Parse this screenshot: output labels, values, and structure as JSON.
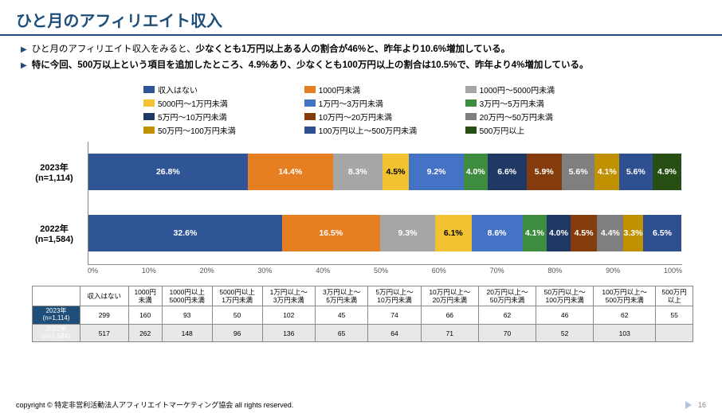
{
  "title": "ひと月のアフィリエイト収入",
  "bullets": [
    "ひと月のアフィリエイト収入をみると、<b>少なくとも1万円以上ある人の割合が46%と、昨年より10.6%増加している。</b>",
    "<b>特に今回、500万以上という項目を追加したところ、4.9%あり、少なくとも100万円以上の割合は10.5%で、昨年より4%増加している。</b>"
  ],
  "categories": [
    "収入はない",
    "1000円未満",
    "1000円〜5000円未満",
    "5000円〜1万円未満",
    "1万円〜3万円未満",
    "3万円〜5万円未満",
    "5万円〜10万円未満",
    "10万円〜20万円未満",
    "20万円〜50万円未満",
    "50万円〜100万円未満",
    "100万円以上〜500万円未満",
    "500万円以上"
  ],
  "colors": [
    "#2f5597",
    "#e67e22",
    "#a6a6a6",
    "#f1c232",
    "#4472c4",
    "#3d8c40",
    "#1f3864",
    "#843c0c",
    "#7f7f7f",
    "#bf9000",
    "#2e5090",
    "#274e13"
  ],
  "legend_text_color": "#333",
  "rows": [
    {
      "label": "2023年\n(n=1,114)",
      "values": [
        26.8,
        14.4,
        8.3,
        4.5,
        9.2,
        4.0,
        6.6,
        5.9,
        5.6,
        4.1,
        5.6,
        4.9
      ]
    },
    {
      "label": "2022年\n(n=1,584)",
      "values": [
        32.6,
        16.5,
        9.3,
        6.1,
        8.6,
        4.1,
        4.0,
        4.5,
        4.4,
        3.3,
        6.5,
        0
      ]
    }
  ],
  "show_labels_2023": [
    1,
    1,
    1,
    1,
    1,
    1,
    1,
    1,
    1,
    1,
    1,
    1
  ],
  "show_labels_2022": [
    1,
    1,
    1,
    1,
    1,
    1,
    1,
    1,
    1,
    1,
    1,
    0
  ],
  "black_text_idx": [
    3
  ],
  "xaxis": [
    "0%",
    "10%",
    "20%",
    "30%",
    "40%",
    "50%",
    "60%",
    "70%",
    "80%",
    "90%",
    "100%"
  ],
  "table": {
    "headers": [
      "",
      "収入はない",
      "1000円\n未満",
      "1000円以上\n5000円未満",
      "5000円以上\n1万円未満",
      "1万円以上〜\n3万円未満",
      "3万円以上〜\n5万円未満",
      "5万円以上〜\n10万円未満",
      "10万円以上〜\n20万円未満",
      "20万円以上〜\n50万円未満",
      "50万円以上〜\n100万円未満",
      "100万円以上〜\n500万円未満",
      "500万円\n以上"
    ],
    "rows": [
      {
        "label": "2023年\n(n=1,114)",
        "cells": [
          299,
          160,
          93,
          50,
          102,
          45,
          74,
          66,
          62,
          46,
          62,
          55
        ]
      },
      {
        "label": "2022年\n(n=1,584)",
        "cells": [
          517,
          262,
          148,
          96,
          136,
          65,
          64,
          71,
          70,
          52,
          103,
          ""
        ]
      }
    ]
  },
  "copyright": "copyright © 特定非営利活動法人アフィリエイトマーケティング協会 all rights reserved.",
  "page": "16"
}
